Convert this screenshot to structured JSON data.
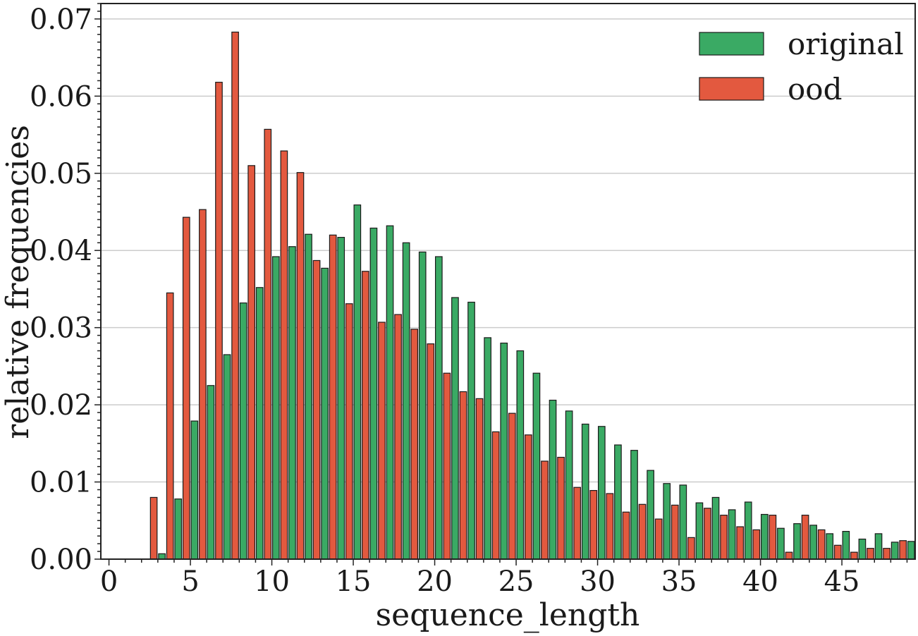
{
  "chart_data": {
    "type": "bar",
    "title": "",
    "xlabel": "sequence_length",
    "ylabel": "relative frequencies",
    "xlim": [
      -0.5,
      49.5
    ],
    "ylim": [
      0,
      0.072
    ],
    "grid": "horizontal",
    "legend_position": "top-right",
    "x_ticks": [
      "0",
      "5",
      "10",
      "15",
      "20",
      "25",
      "30",
      "35",
      "40",
      "45"
    ],
    "y_ticks": [
      "0.00",
      "0.01",
      "0.02",
      "0.03",
      "0.04",
      "0.05",
      "0.06",
      "0.07"
    ],
    "x": [
      0,
      1,
      2,
      3,
      4,
      5,
      6,
      7,
      8,
      9,
      10,
      11,
      12,
      13,
      14,
      15,
      16,
      17,
      18,
      19,
      20,
      21,
      22,
      23,
      24,
      25,
      26,
      27,
      28,
      29,
      30,
      31,
      32,
      33,
      34,
      35,
      36,
      37,
      38,
      39,
      40,
      41,
      42,
      43,
      44,
      45,
      46,
      47,
      48,
      49
    ],
    "series": [
      {
        "name": "original",
        "color": "#3aaa64",
        "values": [
          0,
          0,
          0,
          0.0007,
          0.0078,
          0.0179,
          0.0225,
          0.0265,
          0.0332,
          0.0352,
          0.0392,
          0.0405,
          0.0421,
          0.0377,
          0.0417,
          0.0459,
          0.0429,
          0.0432,
          0.041,
          0.0398,
          0.0392,
          0.0339,
          0.0333,
          0.0287,
          0.028,
          0.027,
          0.0241,
          0.0206,
          0.0192,
          0.0175,
          0.0172,
          0.0148,
          0.0141,
          0.0115,
          0.0098,
          0.0096,
          0.0073,
          0.008,
          0.0064,
          0.0074,
          0.0058,
          0.004,
          0.0046,
          0.0044,
          0.0033,
          0.0036,
          0.0026,
          0.0033,
          0.0022,
          0.0023
        ]
      },
      {
        "name": "ood",
        "color": "#e3593f",
        "values": [
          0,
          0,
          0,
          0.008,
          0.0345,
          0.0443,
          0.0453,
          0.0618,
          0.0683,
          0.051,
          0.0557,
          0.0529,
          0.0501,
          0.0387,
          0.042,
          0.0331,
          0.0373,
          0.0307,
          0.0317,
          0.0298,
          0.0279,
          0.0241,
          0.0217,
          0.0208,
          0.0165,
          0.0189,
          0.0161,
          0.0127,
          0.0132,
          0.0093,
          0.0089,
          0.0085,
          0.0061,
          0.0071,
          0.0052,
          0.007,
          0.0028,
          0.0066,
          0.0057,
          0.0042,
          0.0038,
          0.0057,
          0.0009,
          0.0057,
          0.0038,
          0.0018,
          0.0009,
          0.0014,
          0.0014,
          0.0024
        ]
      }
    ]
  }
}
